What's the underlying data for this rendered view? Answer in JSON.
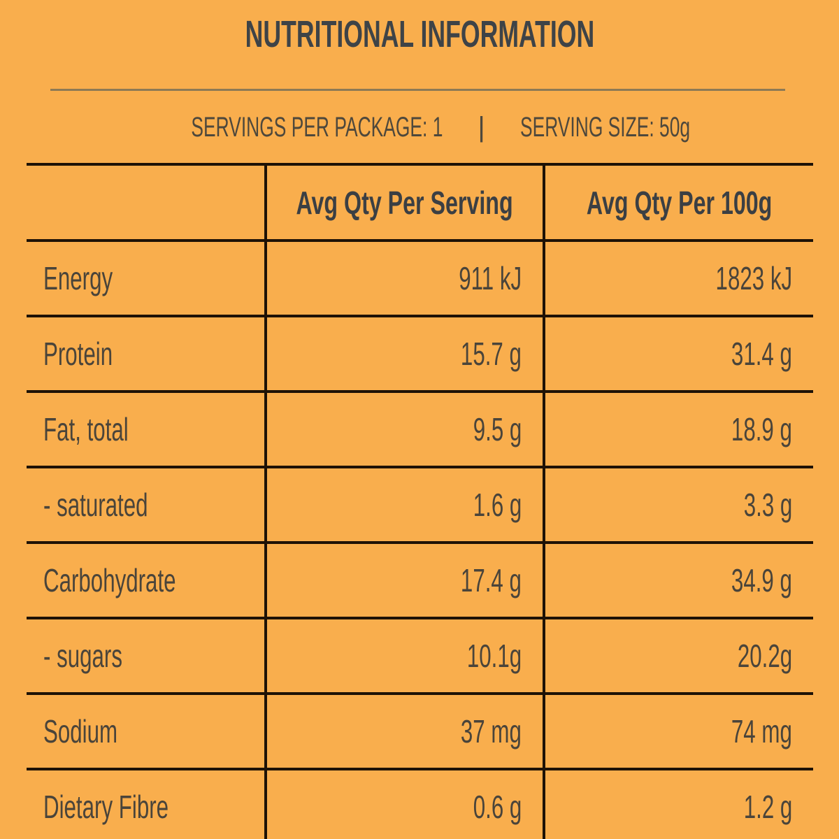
{
  "panel": {
    "title": "NUTRITIONAL INFORMATION",
    "servings_per_package": "SERVINGS PER PACKAGE: 1",
    "separator": "|",
    "serving_size": "SERVING SIZE: 50g"
  },
  "table": {
    "columns": {
      "nutrient": "",
      "per_serving": "Avg Qty Per Serving",
      "per_100g": "Avg Qty Per 100g"
    },
    "rows": [
      {
        "nutrient": "Energy",
        "per_serving": "911 kJ",
        "per_100g": "1823 kJ"
      },
      {
        "nutrient": "Protein",
        "per_serving": "15.7 g",
        "per_100g": "31.4 g"
      },
      {
        "nutrient": "Fat, total",
        "per_serving": "9.5 g",
        "per_100g": "18.9 g"
      },
      {
        "nutrient": "- saturated",
        "per_serving": "1.6 g",
        "per_100g": "3.3 g"
      },
      {
        "nutrient": "Carbohydrate",
        "per_serving": "17.4 g",
        "per_100g": "34.9 g"
      },
      {
        "nutrient": "- sugars",
        "per_serving": "10.1g",
        "per_100g": "20.2g"
      },
      {
        "nutrient": "Sodium",
        "per_serving": "37 mg",
        "per_100g": "74 mg"
      },
      {
        "nutrient": "Dietary Fibre",
        "per_serving": "0.6 g",
        "per_100g": "1.2 g"
      }
    ]
  },
  "colors": {
    "background": "#F9AE4D",
    "heading_text": "#3E4347",
    "body_text": "#4A443A",
    "serving_text": "#4E483C",
    "table_border": "#1E1206",
    "divider": "#8D7A55"
  }
}
